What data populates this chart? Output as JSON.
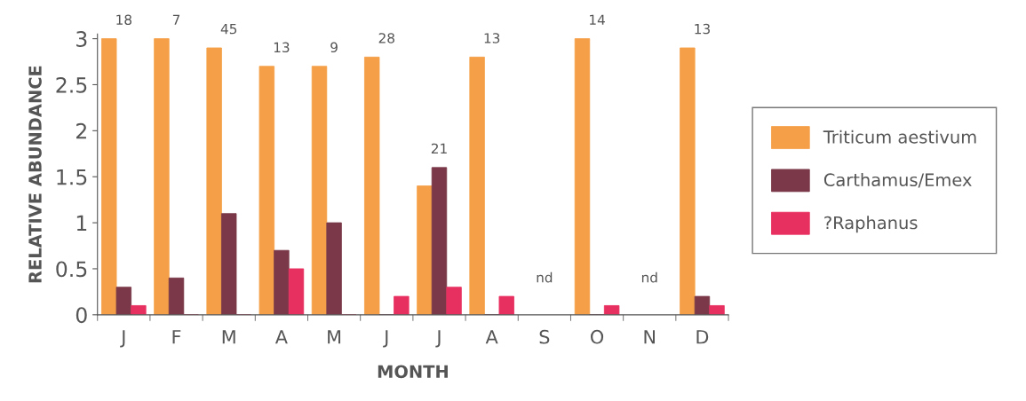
{
  "chart_data": {
    "type": "bar",
    "xlabel": "MONTH",
    "ylabel": "RELATIVE ABUNDANCE",
    "categories": [
      "J",
      "F",
      "M",
      "A",
      "M",
      "J",
      "J",
      "A",
      "S",
      "O",
      "N",
      "D"
    ],
    "series": [
      {
        "name": "Triticum aestivum",
        "color": "#f5a048",
        "values": [
          3.0,
          3.0,
          2.9,
          2.7,
          2.7,
          2.8,
          1.4,
          2.8,
          null,
          3.0,
          null,
          2.9
        ]
      },
      {
        "name": "Carthamus/Emex",
        "color": "#7a3848",
        "values": [
          0.3,
          0.4,
          1.1,
          0.7,
          1.0,
          0,
          1.6,
          0,
          null,
          0,
          null,
          0.2
        ]
      },
      {
        "name": "?Raphanus",
        "color": "#e83060",
        "values": [
          0.1,
          0,
          0,
          0.5,
          0,
          0.2,
          0.3,
          0.2,
          null,
          0.1,
          null,
          0.1
        ]
      }
    ],
    "annotations": [
      "18",
      "7",
      "45",
      "13",
      "9",
      "28",
      "21",
      "13",
      "nd",
      "14",
      "nd",
      "13"
    ],
    "ylim": [
      0,
      3.05
    ],
    "yticks": [
      0,
      0.5,
      1,
      1.5,
      2,
      2.5,
      3
    ],
    "legend": "right",
    "grid": false
  }
}
